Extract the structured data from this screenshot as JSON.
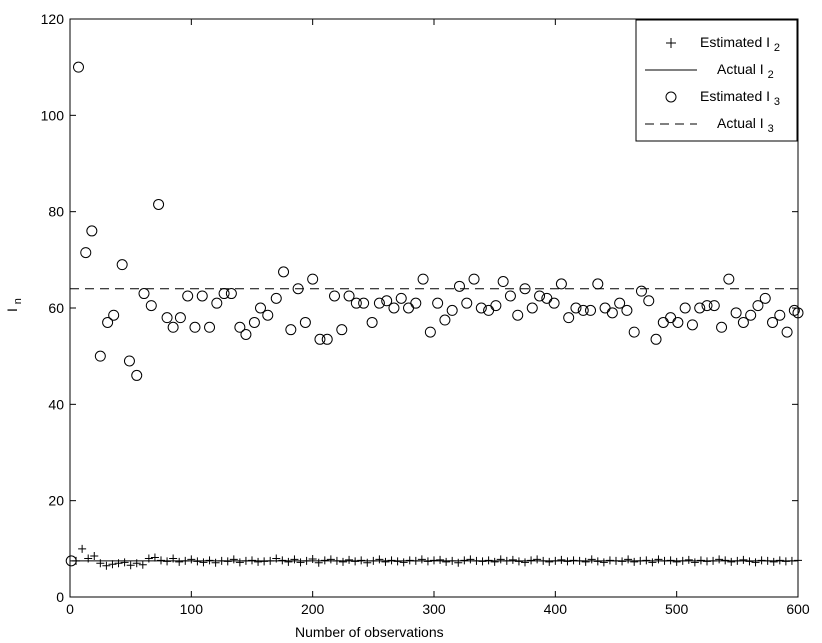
{
  "chart_data": {
    "type": "scatter",
    "xlabel": "Number of observations",
    "ylabel": "I_n",
    "xlim": [
      0,
      600
    ],
    "ylim": [
      0,
      120
    ],
    "xticks": [
      0,
      100,
      200,
      300,
      400,
      500,
      600
    ],
    "yticks": [
      0,
      20,
      40,
      60,
      80,
      100,
      120
    ],
    "grid": false,
    "legend_position": "top-right",
    "legend": [
      {
        "base": "Estimated I",
        "sub": "2"
      },
      {
        "base": "Actual I",
        "sub": "2"
      },
      {
        "base": "Estimated I",
        "sub": "3"
      },
      {
        "base": "Actual I",
        "sub": "3"
      }
    ],
    "series": [
      {
        "name": "Estimated I2",
        "marker": "plus",
        "x": [
          5,
          10,
          15,
          20,
          25,
          30,
          35,
          40,
          45,
          50,
          55,
          60,
          65,
          70,
          75,
          80,
          85,
          90,
          95,
          100,
          105,
          110,
          115,
          120,
          125,
          130,
          135,
          140,
          145,
          150,
          155,
          160,
          165,
          170,
          175,
          180,
          185,
          190,
          195,
          200,
          205,
          210,
          215,
          220,
          225,
          230,
          235,
          240,
          245,
          250,
          255,
          260,
          265,
          270,
          275,
          280,
          285,
          290,
          295,
          300,
          305,
          310,
          315,
          320,
          325,
          330,
          335,
          340,
          345,
          350,
          355,
          360,
          365,
          370,
          375,
          380,
          385,
          390,
          395,
          400,
          405,
          410,
          415,
          420,
          425,
          430,
          435,
          440,
          445,
          450,
          455,
          460,
          465,
          470,
          475,
          480,
          485,
          490,
          495,
          500,
          505,
          510,
          515,
          520,
          525,
          530,
          535,
          540,
          545,
          550,
          555,
          560,
          565,
          570,
          575,
          580,
          585,
          590,
          595,
          600
        ],
        "y": [
          7.5,
          10,
          8,
          8.5,
          7,
          6.5,
          6.8,
          7,
          7.2,
          6.6,
          7,
          6.7,
          8,
          8.2,
          7.6,
          7.4,
          8,
          7.3,
          7.5,
          7.8,
          7.4,
          7.2,
          7.6,
          7.1,
          7.5,
          7.4,
          7.8,
          7.2,
          7.5,
          7.6,
          7.3,
          7.4,
          7.5,
          8,
          7.6,
          7.3,
          7.8,
          7.2,
          7.5,
          7.9,
          7.1,
          7.6,
          7.8,
          7.5,
          7.3,
          7.7,
          7.4,
          7.6,
          7.1,
          7.5,
          7.8,
          7.3,
          7.6,
          7.4,
          7.2,
          7.6,
          7.5,
          7.8,
          7.4,
          7.6,
          7.7,
          7.3,
          7.5,
          7.1,
          7.6,
          7.8,
          7.5,
          7.4,
          7.6,
          7.3,
          7.8,
          7.5,
          7.7,
          7.4,
          7.2,
          7.6,
          7.8,
          7.5,
          7.3,
          7.5,
          7.7,
          7.4,
          7.6,
          7.5,
          7.3,
          7.8,
          7.4,
          7.2,
          7.6,
          7.5,
          7.4,
          7.8,
          7.3,
          7.5,
          7.6,
          7.2,
          7.8,
          7.5,
          7.6,
          7.3,
          7.5,
          7.7,
          7.2,
          7.6,
          7.4,
          7.5,
          7.8,
          7.6,
          7.3,
          7.5,
          7.7,
          7.4,
          7.2,
          7.6,
          7.5,
          7.3,
          7.6,
          7.4,
          7.5,
          7.6
        ]
      },
      {
        "name": "Actual I2",
        "line": "solid",
        "y_const": 7.5
      },
      {
        "name": "Estimated I3",
        "marker": "circle",
        "x": [
          1,
          7,
          13,
          18,
          25,
          31,
          36,
          43,
          49,
          55,
          61,
          67,
          73,
          80,
          85,
          91,
          97,
          103,
          109,
          115,
          121,
          127,
          133,
          140,
          145,
          152,
          157,
          163,
          170,
          176,
          182,
          188,
          194,
          200,
          206,
          212,
          218,
          224,
          230,
          236,
          242,
          249,
          255,
          261,
          267,
          273,
          279,
          285,
          291,
          297,
          303,
          309,
          315,
          321,
          327,
          333,
          339,
          345,
          351,
          357,
          363,
          369,
          375,
          381,
          387,
          393,
          399,
          405,
          411,
          417,
          423,
          429,
          435,
          441,
          447,
          453,
          459,
          465,
          471,
          477,
          483,
          489,
          495,
          501,
          507,
          513,
          519,
          525,
          531,
          537,
          543,
          549,
          555,
          561,
          567,
          573,
          579,
          585,
          591,
          597,
          600
        ],
        "y": [
          7.5,
          110,
          71.5,
          76,
          50,
          57,
          58.5,
          69,
          49,
          46,
          63,
          60.5,
          81.5,
          58,
          56,
          58,
          62.5,
          56,
          62.5,
          56,
          61,
          63,
          63,
          56,
          54.5,
          57,
          60,
          58.5,
          62,
          67.5,
          55.5,
          64,
          57,
          66,
          53.5,
          53.5,
          62.5,
          55.5,
          62.5,
          61,
          61,
          57,
          61,
          61.5,
          60,
          62,
          60,
          61,
          66,
          55,
          61,
          57.5,
          59.5,
          64.5,
          61,
          66,
          60,
          59.5,
          60.5,
          65.5,
          62.5,
          58.5,
          64,
          60,
          62.5,
          62,
          61,
          65,
          58,
          60,
          59.5,
          59.5,
          65,
          60,
          59,
          61,
          59.5,
          55,
          63.5,
          61.5,
          53.5,
          57,
          58,
          57,
          60,
          56.5,
          60,
          60.5,
          60.5,
          56,
          66,
          59,
          57,
          58.5,
          60.5,
          62,
          57,
          58.5,
          55,
          59.5,
          59
        ]
      },
      {
        "name": "Actual I3",
        "line": "dashed",
        "y_const": 64
      }
    ]
  }
}
